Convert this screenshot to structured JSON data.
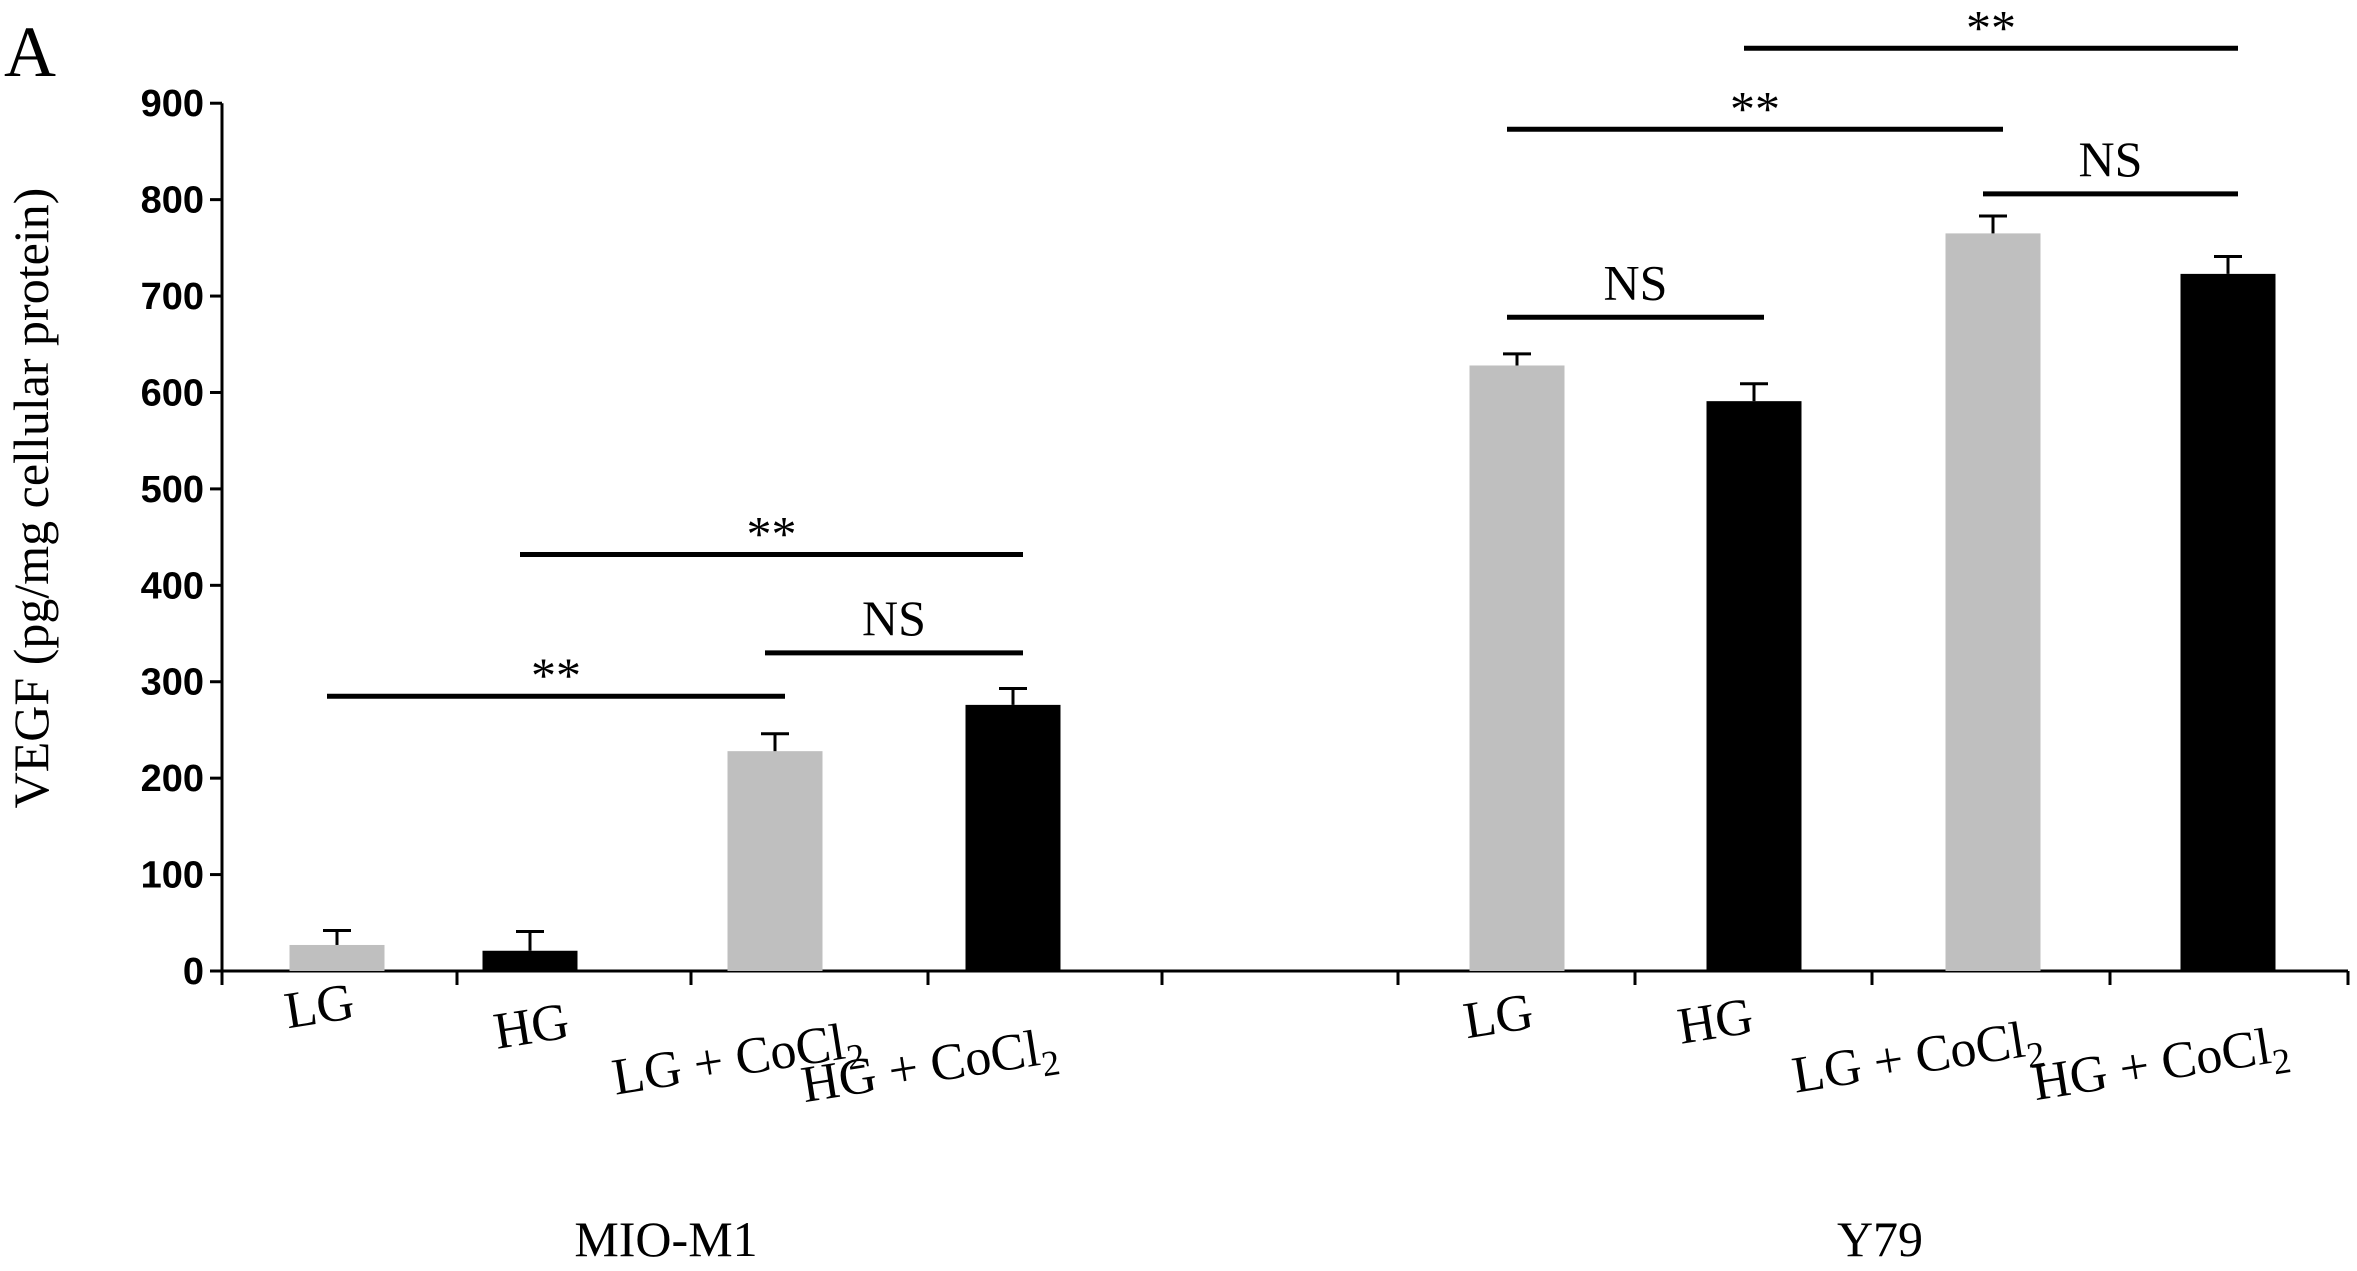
{
  "panel_label": "A",
  "chart_data": {
    "type": "bar",
    "ylabel": "VEGF (pg/mg cellular protein)",
    "ylim": [
      0,
      900
    ],
    "yticks": [
      "0",
      "100",
      "200",
      "300",
      "400",
      "500",
      "600",
      "700",
      "800",
      "900"
    ],
    "ytick_values": [
      0,
      100,
      200,
      300,
      400,
      500,
      600,
      700,
      800,
      900
    ],
    "groups": [
      {
        "name": "MIO-M1",
        "bars": [
          {
            "label": "LG",
            "label_main": "LG",
            "label_sub": "",
            "value": 27,
            "error": 15,
            "color": "#bfbfbf"
          },
          {
            "label": "HG",
            "label_main": "HG",
            "label_sub": "",
            "value": 21,
            "error": 20,
            "color": "#000000"
          },
          {
            "label": "LG + CoCl2",
            "label_main": "LG + CoCl",
            "label_sub": "2",
            "value": 228,
            "error": 18,
            "color": "#bfbfbf"
          },
          {
            "label": "HG + CoCl2",
            "label_main": "HG + CoCl",
            "label_sub": "2",
            "value": 276,
            "error": 17,
            "color": "#000000"
          }
        ]
      },
      {
        "name": "Y79",
        "bars": [
          {
            "label": "LG",
            "label_main": "LG",
            "label_sub": "",
            "value": 628,
            "error": 12,
            "color": "#bfbfbf"
          },
          {
            "label": "HG",
            "label_main": "HG",
            "label_sub": "",
            "value": 591,
            "error": 18,
            "color": "#000000"
          },
          {
            "label": "LG + CoCl2",
            "label_main": "LG + CoCl",
            "label_sub": "2",
            "value": 765,
            "error": 18,
            "color": "#bfbfbf"
          },
          {
            "label": "HG + CoCl2",
            "label_main": "HG + CoCl",
            "label_sub": "2",
            "value": 723,
            "error": 18,
            "color": "#000000"
          }
        ]
      }
    ],
    "significance": [
      {
        "label": "**",
        "from": [
          0,
          0
        ],
        "to": [
          0,
          2
        ],
        "level": 285
      },
      {
        "label": "NS",
        "from": [
          0,
          2
        ],
        "to": [
          0,
          3
        ],
        "level": 330
      },
      {
        "label": "**",
        "from": [
          0,
          1
        ],
        "to": [
          0,
          3
        ],
        "level": 432
      },
      {
        "label": "NS",
        "from": [
          1,
          0
        ],
        "to": [
          1,
          1
        ],
        "level": 678
      },
      {
        "label": "NS",
        "from": [
          1,
          2
        ],
        "to": [
          1,
          3
        ],
        "level": 806
      },
      {
        "label": "**",
        "from": [
          1,
          0
        ],
        "to": [
          1,
          2
        ],
        "level": 873
      },
      {
        "label": "**",
        "from": [
          1,
          1
        ],
        "to": [
          1,
          3
        ],
        "level": 957
      }
    ]
  }
}
